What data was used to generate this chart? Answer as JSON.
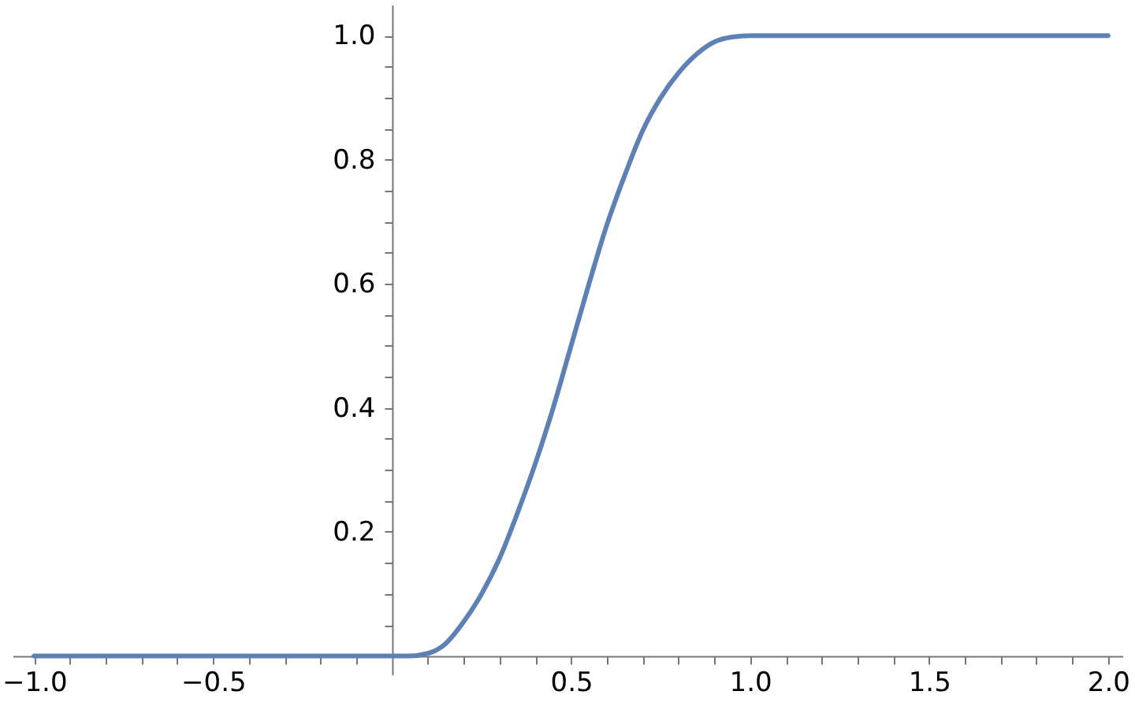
{
  "chart_data": {
    "type": "line",
    "x": [
      -1,
      0,
      0.05,
      0.1,
      0.15,
      0.2,
      0.25,
      0.3,
      0.35,
      0.4,
      0.45,
      0.5,
      0.55,
      0.6,
      0.65,
      0.7,
      0.75,
      0.8,
      0.85,
      0.9,
      0.95,
      1,
      2
    ],
    "series": [
      {
        "color": "#5e81b5",
        "values": [
          0,
          0,
          0,
          0.004,
          0.02,
          0.055,
          0.1,
          0.157,
          0.23,
          0.31,
          0.4,
          0.5,
          0.6,
          0.695,
          0.775,
          0.847,
          0.9,
          0.94,
          0.97,
          0.99,
          0.998,
          1,
          1
        ]
      }
    ],
    "xlim": [
      -1.06,
      2.04
    ],
    "ylim": [
      -0.03,
      1.05
    ],
    "xticks": [
      {
        "value": -1,
        "label": "−1.0"
      },
      {
        "value": -0.9,
        "label": null
      },
      {
        "value": -0.8,
        "label": null
      },
      {
        "value": -0.7,
        "label": null
      },
      {
        "value": -0.6,
        "label": null
      },
      {
        "value": -0.5,
        "label": "−0.5"
      },
      {
        "value": -0.4,
        "label": null
      },
      {
        "value": -0.3,
        "label": null
      },
      {
        "value": -0.2,
        "label": null
      },
      {
        "value": -0.1,
        "label": null
      },
      {
        "value": 0.1,
        "label": null
      },
      {
        "value": 0.2,
        "label": null
      },
      {
        "value": 0.3,
        "label": null
      },
      {
        "value": 0.4,
        "label": null
      },
      {
        "value": 0.5,
        "label": "0.5"
      },
      {
        "value": 0.6,
        "label": null
      },
      {
        "value": 0.7,
        "label": null
      },
      {
        "value": 0.8,
        "label": null
      },
      {
        "value": 0.9,
        "label": null
      },
      {
        "value": 1,
        "label": "1.0"
      },
      {
        "value": 1.1,
        "label": null
      },
      {
        "value": 1.2,
        "label": null
      },
      {
        "value": 1.3,
        "label": null
      },
      {
        "value": 1.4,
        "label": null
      },
      {
        "value": 1.5,
        "label": "1.5"
      },
      {
        "value": 1.6,
        "label": null
      },
      {
        "value": 1.7,
        "label": null
      },
      {
        "value": 1.8,
        "label": null
      },
      {
        "value": 1.9,
        "label": null
      },
      {
        "value": 2,
        "label": "2.0"
      }
    ],
    "yticks": [
      {
        "value": 0.05,
        "label": null
      },
      {
        "value": 0.1,
        "label": null
      },
      {
        "value": 0.15,
        "label": null
      },
      {
        "value": 0.2,
        "label": "0.2"
      },
      {
        "value": 0.25,
        "label": null
      },
      {
        "value": 0.3,
        "label": null
      },
      {
        "value": 0.35,
        "label": null
      },
      {
        "value": 0.4,
        "label": "0.4"
      },
      {
        "value": 0.45,
        "label": null
      },
      {
        "value": 0.5,
        "label": null
      },
      {
        "value": 0.55,
        "label": null
      },
      {
        "value": 0.6,
        "label": "0.6"
      },
      {
        "value": 0.65,
        "label": null
      },
      {
        "value": 0.7,
        "label": null
      },
      {
        "value": 0.75,
        "label": null
      },
      {
        "value": 0.8,
        "label": "0.8"
      },
      {
        "value": 0.85,
        "label": null
      },
      {
        "value": 0.9,
        "label": null
      },
      {
        "value": 0.95,
        "label": null
      },
      {
        "value": 1,
        "label": "1.0"
      }
    ],
    "grid": false,
    "marker": "none",
    "line_style": "solid"
  }
}
